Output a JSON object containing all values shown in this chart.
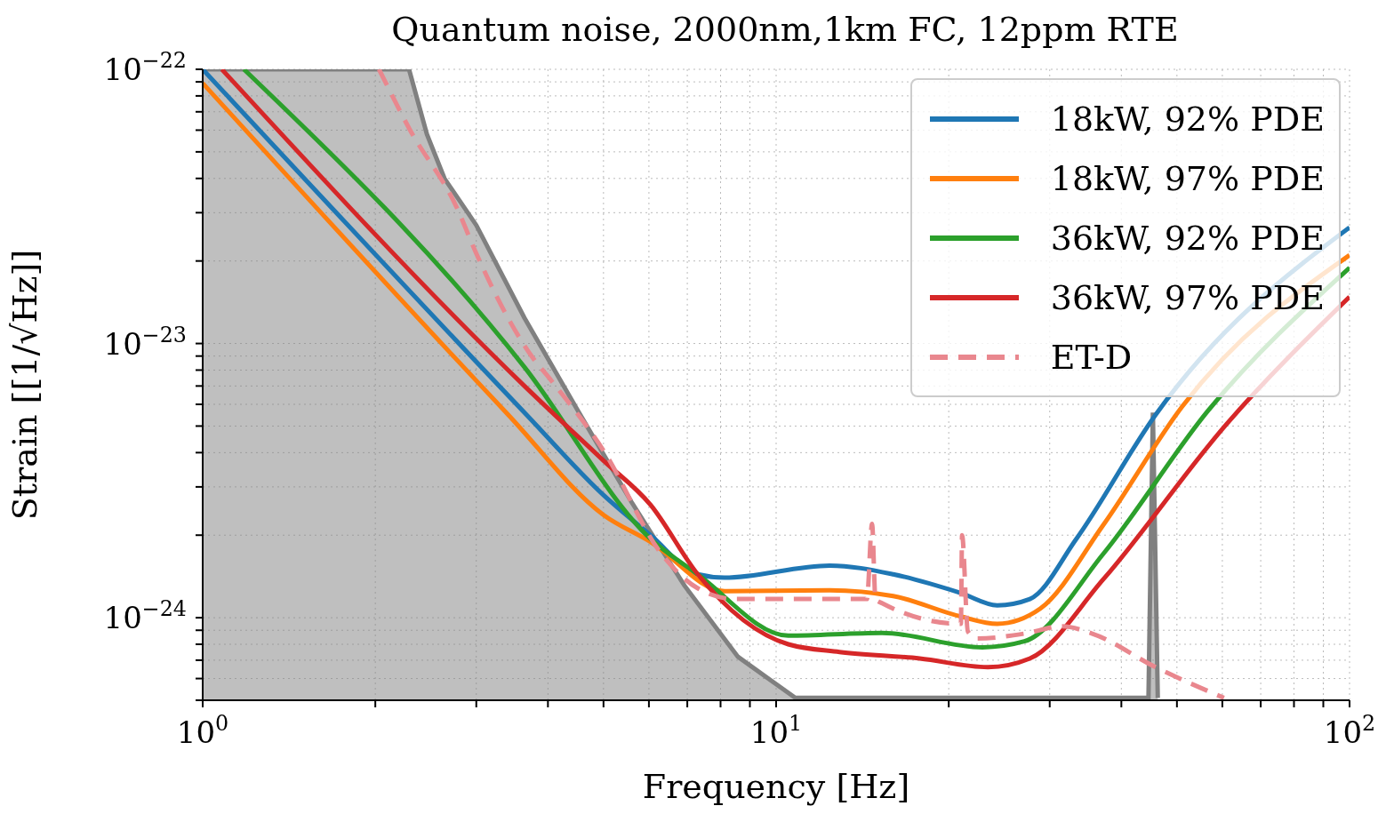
{
  "chart_data": {
    "type": "line",
    "title": "Quantum noise, 2000nm,1km FC, 12ppm RTE",
    "xlabel": "Frequency [Hz]",
    "ylabel": "Strain [[1/√Hz]]",
    "log": "xy",
    "grid": true,
    "legend": "top right",
    "xlim": [
      1,
      100
    ],
    "ylim": [
      5e-25,
      1e-22
    ],
    "xticks": [
      {
        "value": 1,
        "label": "10$^{0}$"
      },
      {
        "value": 2,
        "label": null
      },
      {
        "value": 3,
        "label": null
      },
      {
        "value": 4,
        "label": null
      },
      {
        "value": 5,
        "label": null
      },
      {
        "value": 6,
        "label": null
      },
      {
        "value": 7,
        "label": null
      },
      {
        "value": 8,
        "label": null
      },
      {
        "value": 9,
        "label": null
      },
      {
        "value": 10,
        "label": "10$^{1}$"
      },
      {
        "value": 20,
        "label": null
      },
      {
        "value": 30,
        "label": null
      },
      {
        "value": 40,
        "label": null
      },
      {
        "value": 50,
        "label": null
      },
      {
        "value": 60,
        "label": null
      },
      {
        "value": 70,
        "label": null
      },
      {
        "value": 80,
        "label": null
      },
      {
        "value": 90,
        "label": null
      },
      {
        "value": 100,
        "label": "10$^{2}$"
      }
    ],
    "yticks": [
      {
        "value": 5e-25,
        "label": null
      },
      {
        "value": 6e-25,
        "label": null
      },
      {
        "value": 7e-25,
        "label": null
      },
      {
        "value": 8e-25,
        "label": null
      },
      {
        "value": 9e-25,
        "label": null
      },
      {
        "value": 1e-24,
        "label": "10$^{−24}$"
      },
      {
        "value": 2e-24,
        "label": null
      },
      {
        "value": 3e-24,
        "label": null
      },
      {
        "value": 4e-24,
        "label": null
      },
      {
        "value": 5e-24,
        "label": null
      },
      {
        "value": 6e-24,
        "label": null
      },
      {
        "value": 7e-24,
        "label": null
      },
      {
        "value": 8e-24,
        "label": null
      },
      {
        "value": 9e-24,
        "label": null
      },
      {
        "value": 1e-23,
        "label": "10$^{−23}$"
      },
      {
        "value": 2e-23,
        "label": null
      },
      {
        "value": 3e-23,
        "label": null
      },
      {
        "value": 4e-23,
        "label": null
      },
      {
        "value": 5e-23,
        "label": null
      },
      {
        "value": 6e-23,
        "label": null
      },
      {
        "value": 7e-23,
        "label": null
      },
      {
        "value": 8e-23,
        "label": null
      },
      {
        "value": 9e-23,
        "label": null
      },
      {
        "value": 1e-22,
        "label": "10$^{−22}$"
      }
    ],
    "series": [
      {
        "type": "area",
        "color": "#808080",
        "x": [
          1,
          2.29,
          2.46,
          2.64,
          3.0,
          3.64,
          4.51,
          5.59,
          6.92,
          8.58,
          10.8,
          44.6,
          45.4,
          46.3
        ],
        "values": [
          1e-22,
          1e-22,
          5.8e-23,
          4e-23,
          2.7e-23,
          1.24e-23,
          5.7e-24,
          2.65e-24,
          1.31e-24,
          7.2e-25,
          5.1e-25,
          5.1e-25,
          5.6e-24,
          5.1e-25
        ]
      },
      {
        "name": "18kW, 92% PDE",
        "color": "#1f77b4",
        "x": [
          1,
          3.67,
          5.0,
          6.04,
          7.3,
          8.13,
          12.4,
          16.0,
          21.0,
          24.3,
          27.7,
          33.4,
          45.9,
          100
        ],
        "values": [
          1e-22,
          5.5e-24,
          2.8e-24,
          2e-24,
          1.44e-24,
          1.4e-24,
          1.55e-24,
          1.44e-24,
          1.23e-24,
          1.11e-24,
          1.17e-24,
          1.94e-24,
          5.5e-24,
          2.65e-23
        ]
      },
      {
        "name": "18kW, 97% PDE",
        "color": "#ff7f0e",
        "x": [
          1,
          3.41,
          5.0,
          6.04,
          8.13,
          12.4,
          16.0,
          21.0,
          24.3,
          28.9,
          37.2,
          51.1,
          100
        ],
        "values": [
          8.9e-23,
          5.5e-24,
          2.37e-24,
          1.89e-24,
          1.25e-24,
          1.26e-24,
          1.2e-24,
          1.01e-24,
          9.5e-25,
          1.08e-24,
          2.18e-24,
          5.9e-24,
          2.1e-23
        ]
      },
      {
        "name": "36kW, 92% PDE",
        "color": "#2ca02c",
        "x": [
          1.18,
          3.64,
          6.04,
          7.3,
          10.5,
          15.3,
          22.9,
          27.1,
          37.2,
          56.7,
          100
        ],
        "values": [
          1e-22,
          8.2e-24,
          1.94e-24,
          1.44e-24,
          8.6e-25,
          8.8e-25,
          7.8e-25,
          8.2e-25,
          1.71e-24,
          5.7e-24,
          1.89e-23
        ]
      },
      {
        "name": "36kW, 97% PDE",
        "color": "#d62728",
        "x": [
          1.08,
          3.64,
          5.0,
          6.04,
          7.3,
          10.5,
          12.9,
          17.8,
          23.4,
          27.7,
          37.2,
          61.1,
          100
        ],
        "values": [
          1e-22,
          7e-24,
          3.74e-24,
          2.58e-24,
          1.44e-24,
          8e-25,
          7.5e-25,
          7.1e-25,
          6.6e-25,
          7.1e-25,
          1.38e-24,
          5.1e-24,
          1.48e-23
        ]
      },
      {
        "name": "ET-D",
        "color": "#e9878e",
        "line_style": "dashed",
        "x": [
          2.03,
          2.29,
          2.78,
          3.0,
          3.76,
          4.06,
          5.0,
          6.31,
          7.3,
          8.49,
          14.4,
          14.7,
          14.9,
          15.3,
          21.0,
          21.1,
          21.6,
          22.4,
          27.1,
          31.5,
          35.6,
          45.9,
          60.4
        ],
        "values": [
          1e-22,
          6.1e-23,
          3.1e-23,
          2.13e-23,
          8.9e-24,
          7.3e-24,
          4.07e-24,
          1.71e-24,
          1.28e-24,
          1.17e-24,
          1.17e-24,
          2.2e-24,
          1.17e-24,
          1.13e-24,
          9.5e-25,
          2e-24,
          8.9e-25,
          8.4e-25,
          8.75e-25,
          9.3e-25,
          8.75e-25,
          6.6e-25,
          5.1e-25
        ]
      }
    ]
  }
}
